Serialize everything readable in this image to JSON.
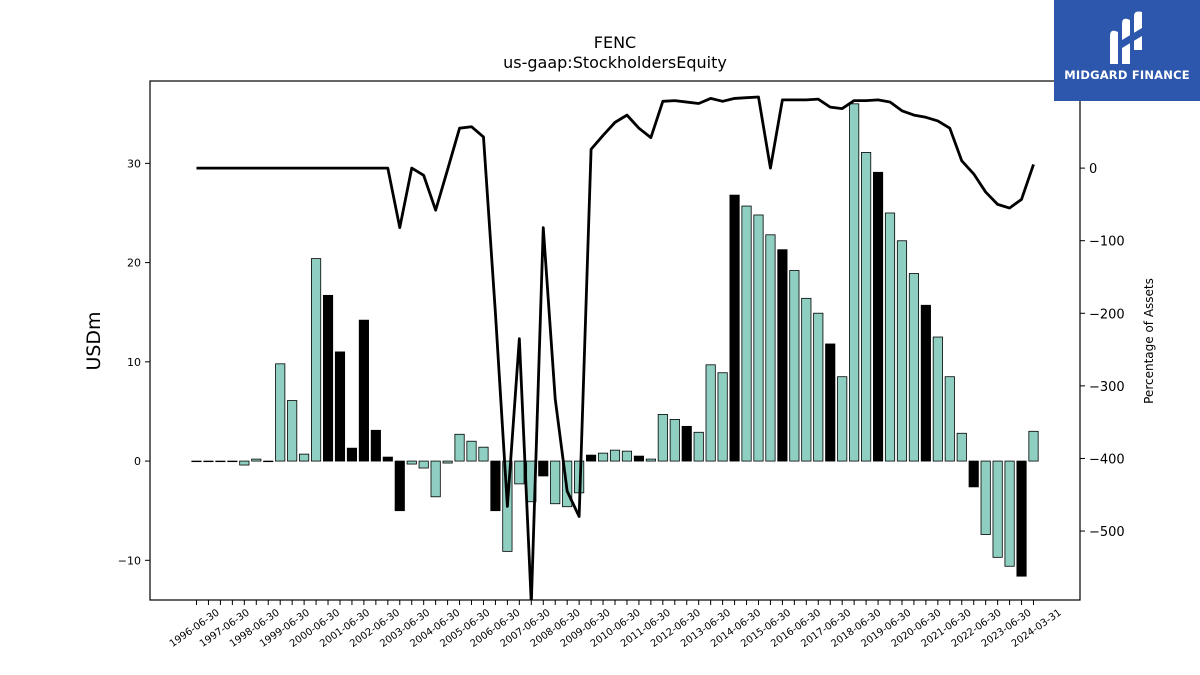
{
  "logo": {
    "text": "MIDGARD FINANCE",
    "icon": "midgard-m-icon",
    "background_color": "#2c57ad"
  },
  "chart_data": {
    "type": "bar",
    "title": "FENC",
    "subtitle": "us-gaap:StockholdersEquity",
    "ylabel_left": "USDm",
    "ylabel_right": "Percentage of Assets",
    "ylim_left": [
      -14,
      38.3
    ],
    "ylim_right": [
      -595,
      120
    ],
    "yticks_left": [
      -10,
      0,
      10,
      20,
      30
    ],
    "yticks_right": [
      -500,
      -400,
      -300,
      -200,
      -100,
      0,
      100
    ],
    "grid": false,
    "bar_fill_color": "#8ecfc2",
    "bar_negative_quarter_color": "#000000",
    "line_color": "#000000",
    "x_labels": [
      "1996-06-30",
      "1997-06-30",
      "1998-06-30",
      "1999-06-30",
      "2000-06-30",
      "2001-06-30",
      "2002-06-30",
      "2003-06-30",
      "2004-06-30",
      "2005-06-30",
      "2006-06-30",
      "2007-06-30",
      "2008-06-30",
      "2009-06-30",
      "2010-06-30",
      "2011-06-30",
      "2012-06-30",
      "2013-06-30",
      "2014-06-30",
      "2015-06-30",
      "2016-06-30",
      "2017-06-30",
      "2018-06-30",
      "2019-06-30",
      "2020-06-30",
      "2021-06-30",
      "2022-06-30",
      "2023-06-30",
      "2024-03-31"
    ],
    "bars": [
      0.0,
      0.0,
      0.0,
      0.0,
      -0.4,
      0.2,
      0.0,
      9.8,
      6.1,
      0.7,
      20.4,
      16.7,
      11.0,
      1.3,
      14.2,
      3.1,
      0.4,
      -5.0,
      -0.3,
      -0.7,
      -3.6,
      -0.2,
      2.7,
      2.0,
      1.4,
      -5.0,
      -9.1,
      -2.3,
      -4.1,
      -1.5,
      -4.3,
      -4.6,
      -3.2,
      0.6,
      0.8,
      1.1,
      1.0,
      0.5,
      0.2,
      4.7,
      4.2,
      3.5,
      2.9,
      9.7,
      8.9,
      26.8,
      25.7,
      24.8,
      22.8,
      21.3,
      19.2,
      16.4,
      14.9,
      11.8,
      8.5,
      36.0,
      31.1,
      29.1,
      25.0,
      22.2,
      18.9,
      15.7,
      12.5,
      8.5,
      2.8,
      -2.6,
      -7.4,
      -9.7,
      -10.6,
      -11.6,
      3.0
    ],
    "bar_is_black": [
      false,
      false,
      false,
      false,
      false,
      false,
      false,
      false,
      false,
      false,
      false,
      true,
      true,
      true,
      true,
      true,
      true,
      true,
      false,
      false,
      false,
      false,
      false,
      false,
      false,
      true,
      false,
      false,
      false,
      true,
      false,
      false,
      false,
      true,
      false,
      false,
      false,
      true,
      false,
      false,
      false,
      true,
      false,
      false,
      false,
      true,
      false,
      false,
      false,
      true,
      false,
      false,
      false,
      true,
      false,
      false,
      false,
      true,
      false,
      false,
      false,
      true,
      false,
      false,
      false,
      true,
      false,
      false,
      false,
      true,
      false
    ],
    "pct_of_assets": [
      0,
      0,
      0,
      0,
      0,
      0,
      0,
      0,
      0,
      0,
      0,
      0,
      0,
      0,
      0,
      0,
      0,
      -82,
      0,
      -10,
      -58,
      -2,
      55,
      57,
      43,
      -200,
      -466,
      -235,
      -600,
      -82,
      -318,
      -445,
      -480,
      26,
      45,
      63,
      73,
      55,
      42,
      92,
      93,
      91,
      89,
      96,
      92,
      96,
      97,
      98,
      0,
      94,
      94,
      94,
      95,
      84,
      82,
      93,
      93,
      94,
      91,
      79,
      73,
      70,
      65,
      55,
      10,
      -8,
      -33,
      -50,
      -55,
      -43,
      5
    ]
  }
}
